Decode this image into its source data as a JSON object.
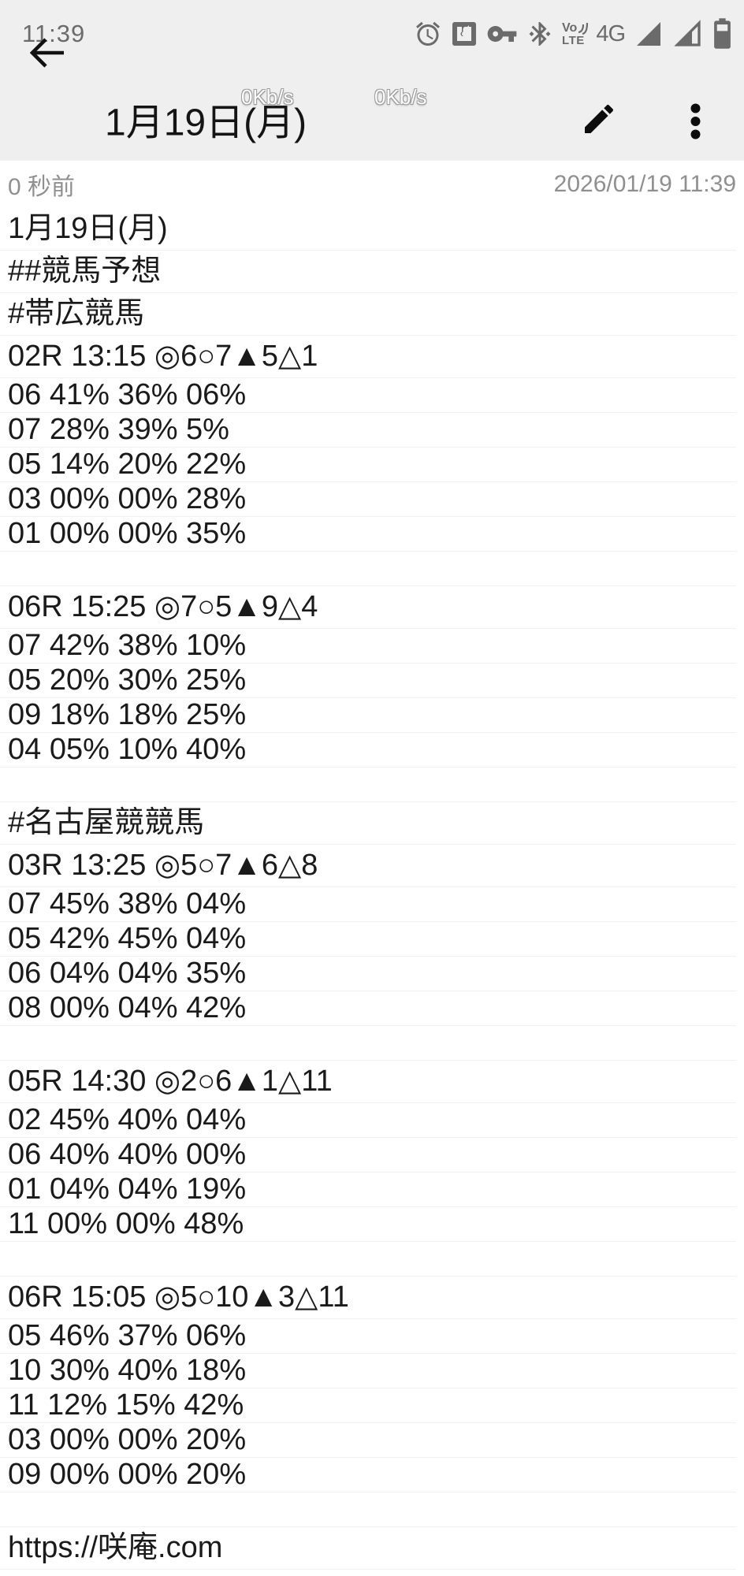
{
  "status_bar": {
    "time": "11:39",
    "icons": [
      "alarm",
      "nfc",
      "vpn-key",
      "bluetooth",
      "volte",
      "4g",
      "signal-sim1-full",
      "signal-sim2-partial",
      "battery"
    ],
    "volte_top": "Vo",
    "volte_bottom": "LTE",
    "network_badge": "4G"
  },
  "app_bar": {
    "title": "1月19日(月)",
    "speed_overlays": [
      "0Kb/s",
      "0Kb/s"
    ]
  },
  "meta": {
    "relative_time": "0 秒前",
    "timestamp": "2026/01/19 11:39"
  },
  "note": {
    "lines": [
      "1月19日(月)",
      "##競馬予想",
      "#帯広競馬",
      "02R 13:15 ◎6○7▲5△1",
      "06 41% 36% 06%",
      "07 28% 39% 5%",
      "05 14% 20% 22%",
      "03 00% 00% 28%",
      "01 00% 00% 35%",
      "",
      "06R 15:25 ◎7○5▲9△4",
      "07 42% 38% 10%",
      "05 20% 30% 25%",
      "09 18% 18% 25%",
      "04 05% 10% 40%",
      "",
      "#名古屋競競馬",
      "03R 13:25 ◎5○7▲6△8",
      "07 45% 38% 04%",
      "05 42% 45% 04%",
      "06 04% 04% 35%",
      "08 00% 04% 42%",
      "",
      "05R 14:30 ◎2○6▲1△11",
      "02 45% 40% 04%",
      "06 40% 40% 00%",
      "01 04% 04% 19%",
      "11 00% 00% 48%",
      "",
      "06R 15:05 ◎5○10▲3△11",
      "05 46% 37% 06%",
      "10 30% 40% 18%",
      "11 12% 15% 42%",
      "03 00% 00% 20%",
      "09 00% 00% 20%",
      "",
      "https://咲庵.com"
    ]
  },
  "colors": {
    "bar_background": "#efefef",
    "content_background": "#ffffff",
    "text": "#1a1a1a",
    "muted_text": "#8f8f8f",
    "status_icon": "#6b6b6b",
    "rule_line": "#f1f1f1"
  }
}
